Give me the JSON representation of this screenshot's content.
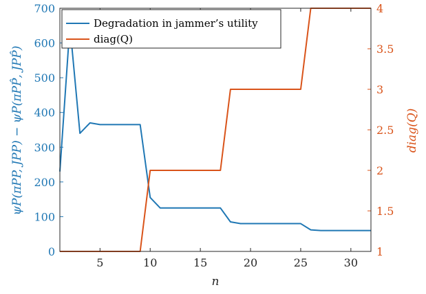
{
  "chart_data": {
    "type": "line",
    "xlabel": "n",
    "ylabel_left": "ψP(πPP, JPP) − ψP(πPP̂, JPP̂)",
    "ylabel_right": "diag(Q)",
    "xlim": [
      1,
      32
    ],
    "ylim_left": [
      0,
      700
    ],
    "ylim_right": [
      1,
      4
    ],
    "xticks": [
      5,
      10,
      15,
      20,
      25,
      30
    ],
    "yticks_left": [
      0,
      100,
      200,
      300,
      400,
      500,
      600,
      700
    ],
    "yticks_right": [
      1,
      1.5,
      2,
      2.5,
      3,
      3.5,
      4
    ],
    "grid": false,
    "legend_position": "top-left",
    "series": [
      {
        "name": "Degradation in jammer’s utility",
        "axis": "left",
        "color": "#1f77b4",
        "x": [
          1,
          2,
          3,
          4,
          5,
          6,
          7,
          8,
          9,
          10,
          11,
          12,
          13,
          14,
          15,
          16,
          17,
          18,
          19,
          20,
          21,
          22,
          23,
          24,
          25,
          26,
          27,
          28,
          29,
          30,
          31,
          32
        ],
        "y": [
          230,
          650,
          340,
          370,
          365,
          365,
          365,
          365,
          365,
          155,
          125,
          125,
          125,
          125,
          125,
          125,
          125,
          85,
          80,
          80,
          80,
          80,
          80,
          80,
          80,
          62,
          60,
          60,
          60,
          60,
          60,
          60
        ]
      },
      {
        "name": "diag(Q)",
        "axis": "right",
        "color": "#d95319",
        "x": [
          1,
          2,
          3,
          4,
          5,
          6,
          7,
          8,
          9,
          10,
          11,
          12,
          13,
          14,
          15,
          16,
          17,
          18,
          19,
          20,
          21,
          22,
          23,
          24,
          25,
          26,
          27,
          28,
          29,
          30,
          31,
          32
        ],
        "y": [
          1,
          1,
          1,
          1,
          1,
          1,
          1,
          1,
          1,
          2,
          2,
          2,
          2,
          2,
          2,
          2,
          2,
          3,
          3,
          3,
          3,
          3,
          3,
          3,
          3,
          4,
          4,
          4,
          4,
          4,
          4,
          4
        ]
      }
    ]
  }
}
